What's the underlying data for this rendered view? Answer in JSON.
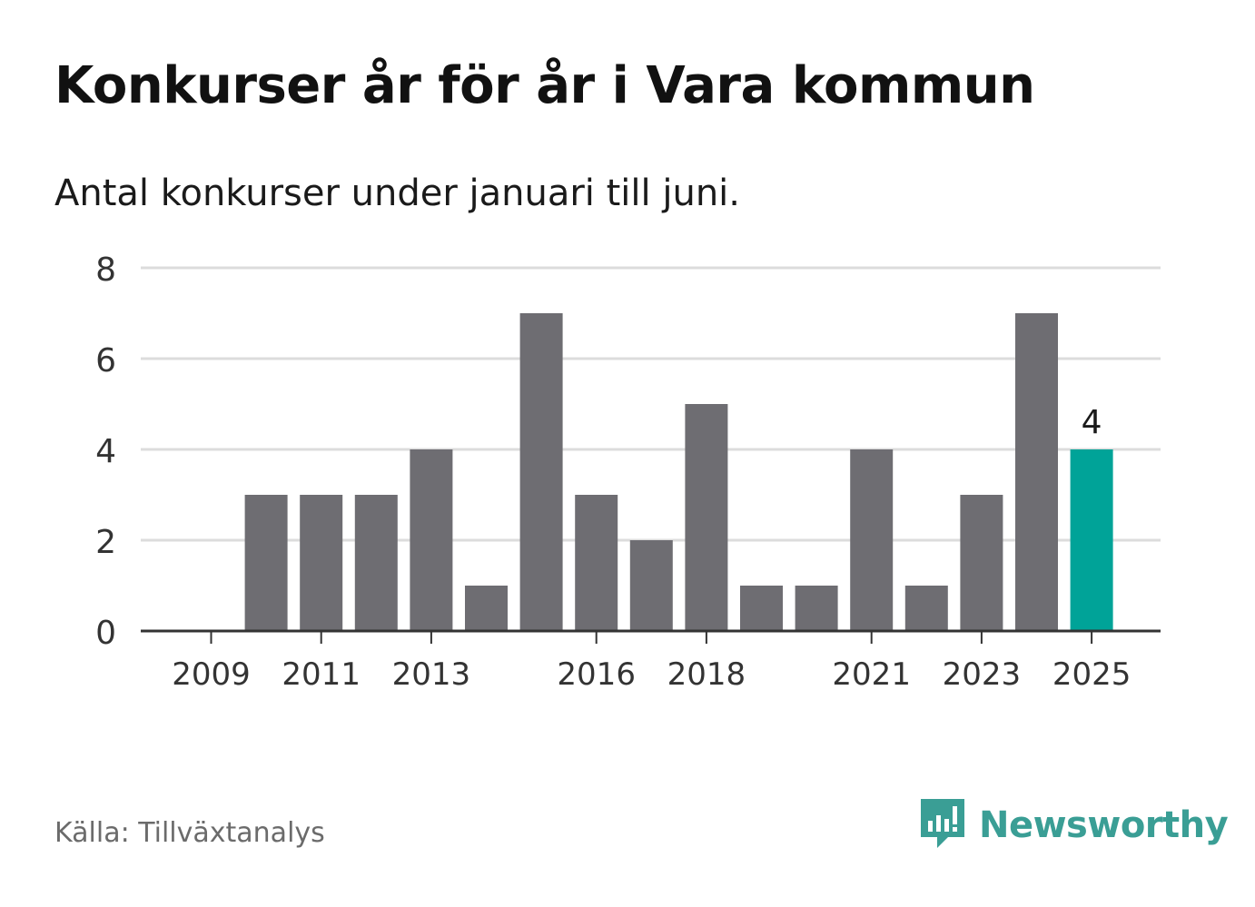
{
  "title": "Konkurser år för år i Vara kommun",
  "subtitle": "Antal konkurser under januari till juni.",
  "source": "Källa: Tillväxtanalys",
  "brand": {
    "name": "Newsworthy",
    "icon": "newsworthy-logo-icon",
    "color": "#3a9e95"
  },
  "colors": {
    "bar": "#6e6d72",
    "highlight": "#00a398",
    "grid": "#dcdcdc",
    "axis": "#333333"
  },
  "chart_data": {
    "type": "bar",
    "title": "Konkurser år för år i Vara kommun",
    "subtitle": "Antal konkurser under januari till juni.",
    "xlabel": "",
    "ylabel": "",
    "categories": [
      "2009",
      "2010",
      "2011",
      "2012",
      "2013",
      "2014",
      "2015",
      "2016",
      "2017",
      "2018",
      "2019",
      "2020",
      "2021",
      "2022",
      "2023",
      "2024",
      "2025"
    ],
    "values": [
      0,
      3,
      3,
      3,
      4,
      1,
      7,
      3,
      2,
      5,
      1,
      1,
      4,
      1,
      3,
      7,
      4
    ],
    "x_tick_labels": [
      "2009",
      "2011",
      "2013",
      "2016",
      "2018",
      "2021",
      "2023",
      "2025"
    ],
    "y_ticks": [
      0,
      2,
      4,
      6,
      8
    ],
    "ylim": [
      0,
      8
    ],
    "grid": true,
    "highlight_category": "2025",
    "data_labels": [
      {
        "category": "2025",
        "text": "4"
      }
    ],
    "legend": "none"
  }
}
